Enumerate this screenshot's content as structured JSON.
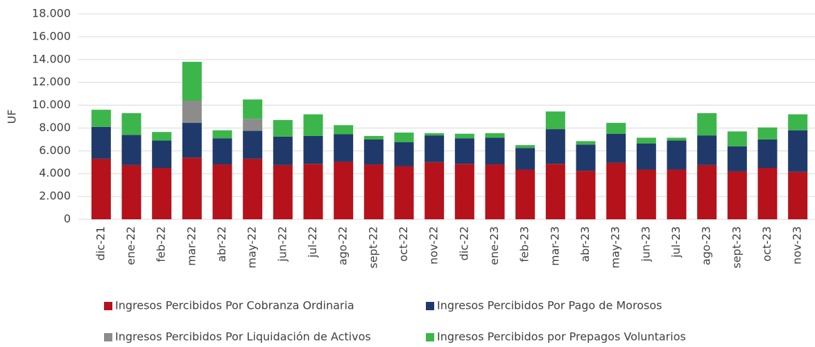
{
  "chart_data": {
    "type": "stacked-bar",
    "y_label": "UF",
    "categories": [
      "dic-21",
      "ene-22",
      "feb-22",
      "mar-22",
      "abr-22",
      "may-22",
      "jun-22",
      "jul-22",
      "ago-22",
      "sept-22",
      "oct-22",
      "nov-22",
      "dic-22",
      "ene-23",
      "feb-23",
      "mar-23",
      "abr-23",
      "may-23",
      "jun-23",
      "jul-23",
      "ago-23",
      "sept-23",
      "oct-23",
      "nov-23"
    ],
    "series": [
      {
        "name": "Ingresos Percibidos Por Cobranza Ordinaria",
        "color": "#b5121b",
        "values": [
          5300,
          4750,
          4500,
          5400,
          4800,
          5300,
          4750,
          4850,
          5050,
          4800,
          4650,
          5000,
          4850,
          4800,
          4350,
          4850,
          4250,
          4950,
          4350,
          4350,
          4750,
          4200,
          4500,
          4150
        ]
      },
      {
        "name": "Ingresos Percibidos Por Pago de Morosos",
        "color": "#1f3a6a",
        "values": [
          2800,
          2650,
          2400,
          3050,
          2300,
          2450,
          2500,
          2450,
          2400,
          2200,
          2100,
          2350,
          2250,
          2350,
          1900,
          3050,
          2300,
          2550,
          2300,
          2550,
          2600,
          2200,
          2500,
          3650
        ]
      },
      {
        "name": "Ingresos Percibidos Por Liquidación de Activos",
        "color": "#8c8c8c",
        "values": [
          0,
          0,
          0,
          1950,
          0,
          1050,
          0,
          0,
          0,
          0,
          0,
          0,
          0,
          0,
          0,
          0,
          0,
          0,
          0,
          0,
          0,
          0,
          0,
          0
        ]
      },
      {
        "name": "Ingresos Percibidos por Prepagos Voluntarios",
        "color": "#3cb64a",
        "values": [
          1500,
          1900,
          750,
          3400,
          700,
          1700,
          1450,
          1900,
          800,
          300,
          850,
          200,
          400,
          400,
          250,
          1550,
          300,
          950,
          500,
          250,
          1950,
          1300,
          1050,
          1400
        ]
      }
    ],
    "ylim": [
      0,
      18000
    ],
    "yticks": [
      0,
      {
        "value": 2000,
        "label": "2.000"
      },
      {
        "value": 4000,
        "label": "4.000"
      },
      {
        "value": 6000,
        "label": "6.000"
      },
      {
        "value": 8000,
        "label": "8.000"
      },
      {
        "value": 10000,
        "label": "10.000"
      },
      {
        "value": 12000,
        "label": "12.000"
      },
      {
        "value": 14000,
        "label": "14.000"
      },
      {
        "value": 16000,
        "label": "16.000"
      },
      {
        "value": 18000,
        "label": "18.000"
      }
    ],
    "grid": true,
    "legend": "bottom"
  }
}
